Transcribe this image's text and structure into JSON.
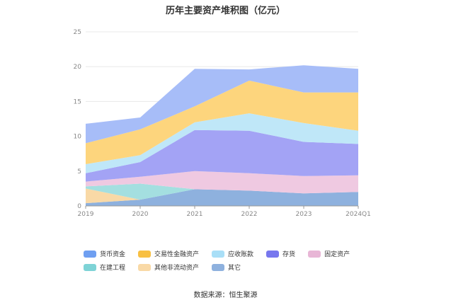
{
  "chart_data": {
    "type": "area",
    "stacked": true,
    "title": "历年主要资产堆积图（亿元）",
    "categories": [
      "2019",
      "2020",
      "2021",
      "2022",
      "2023",
      "2024Q1"
    ],
    "ylim": [
      0,
      25
    ],
    "yticks": [
      0,
      5,
      10,
      15,
      20,
      25
    ],
    "grid": true,
    "legend_position": "bottom",
    "series": [
      {
        "name": "其它",
        "color": "#8eb1de",
        "values": [
          0.4,
          0.9,
          2.4,
          2.2,
          1.8,
          2.0
        ]
      },
      {
        "name": "其他非流动资产",
        "color": "#f9d9a6",
        "values": [
          2.1,
          0.0,
          0.0,
          0.0,
          0.0,
          0.0
        ]
      },
      {
        "name": "在建工程",
        "color": "#a4dfe0",
        "values": [
          0.3,
          2.3,
          0.0,
          0.0,
          0.0,
          0.0
        ]
      },
      {
        "name": "固定资产",
        "color": "#efc9e1",
        "values": [
          0.7,
          1.0,
          2.6,
          2.5,
          2.5,
          2.4
        ]
      },
      {
        "name": "存货",
        "color": "#a3a3f5",
        "values": [
          1.2,
          2.1,
          5.9,
          6.1,
          4.9,
          4.5
        ]
      },
      {
        "name": "应收账款",
        "color": "#bfe7f8",
        "values": [
          1.3,
          1.0,
          1.1,
          2.5,
          2.7,
          1.9
        ]
      },
      {
        "name": "交易性金融资产",
        "color": "#fdd57d",
        "values": [
          3.0,
          3.7,
          2.3,
          4.7,
          4.4,
          5.5
        ]
      },
      {
        "name": "货币资金",
        "color": "#a7bdf8",
        "values": [
          2.8,
          1.7,
          5.4,
          1.6,
          3.9,
          3.4
        ]
      }
    ]
  },
  "legend": [
    {
      "label": "货币资金",
      "color": "#6f9ff1"
    },
    {
      "label": "交易性金融资产",
      "color": "#f8c043"
    },
    {
      "label": "应收账款",
      "color": "#a9dff7"
    },
    {
      "label": "存货",
      "color": "#7777ee"
    },
    {
      "label": "固定资产",
      "color": "#e8b6d6"
    },
    {
      "label": "在建工程",
      "color": "#7ed3d6"
    },
    {
      "label": "其他非流动资产",
      "color": "#f9d9a6"
    },
    {
      "label": "其它",
      "color": "#8eb1de"
    }
  ],
  "source": "数据来源：恒生聚源"
}
